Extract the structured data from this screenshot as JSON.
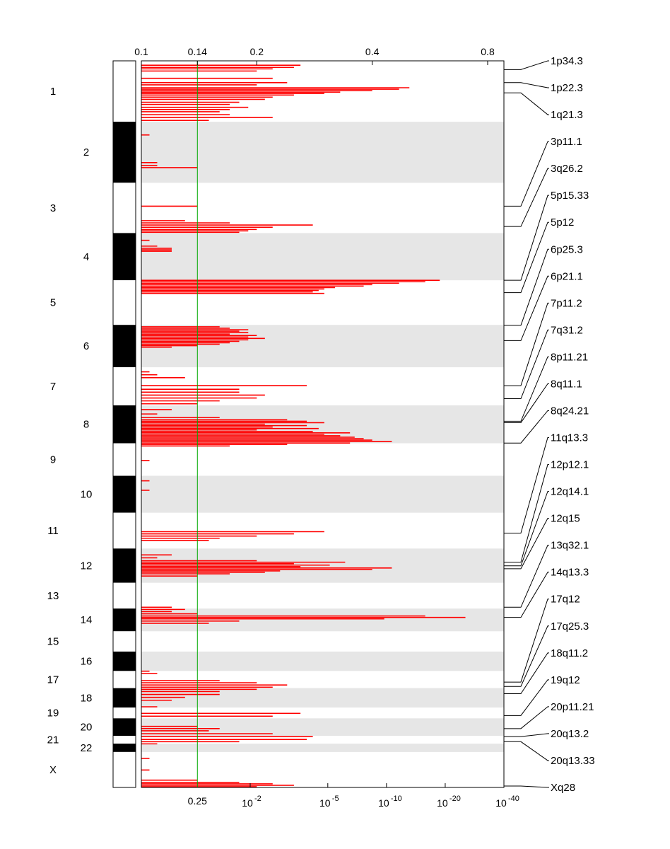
{
  "chart_data": {
    "type": "genome-amplification-plot",
    "top_axis": {
      "ticks": [
        "0.1",
        "0.14",
        "0.2",
        "0.4",
        "0.8"
      ],
      "tick_values": [
        0.1,
        0.14,
        0.2,
        0.4,
        0.8
      ]
    },
    "bottom_axis": {
      "plain_tick": "0.25",
      "pvalue_ticks": [
        {
          "base": "10",
          "exp": "-2"
        },
        {
          "base": "10",
          "exp": "-5"
        },
        {
          "base": "10",
          "exp": "-10"
        },
        {
          "base": "10",
          "exp": "-20"
        },
        {
          "base": "10",
          "exp": "-40"
        }
      ],
      "pvalue_exponents": [
        -2,
        -5,
        -10,
        -20,
        -40
      ]
    },
    "threshold_line": {
      "value": 0.14,
      "q_value": 0.25,
      "color": "#00aa00"
    },
    "series_color": "#ff0000",
    "chromosomes": [
      {
        "name": "1",
        "start": 0.0,
        "end": 0.0838
      },
      {
        "name": "2",
        "start": 0.0838,
        "end": 0.1678
      },
      {
        "name": "3",
        "start": 0.1678,
        "end": 0.237
      },
      {
        "name": "4",
        "start": 0.237,
        "end": 0.302
      },
      {
        "name": "5",
        "start": 0.302,
        "end": 0.3634
      },
      {
        "name": "6",
        "start": 0.3634,
        "end": 0.4217
      },
      {
        "name": "7",
        "start": 0.4217,
        "end": 0.4741
      },
      {
        "name": "8",
        "start": 0.4741,
        "end": 0.5263
      },
      {
        "name": "9",
        "start": 0.5263,
        "end": 0.5711
      },
      {
        "name": "10",
        "start": 0.5711,
        "end": 0.6219
      },
      {
        "name": "11",
        "start": 0.6219,
        "end": 0.6712
      },
      {
        "name": "12",
        "start": 0.6712,
        "end": 0.7183
      },
      {
        "name": "13",
        "start": 0.7183,
        "end": 0.7538
      },
      {
        "name": "14",
        "start": 0.7538,
        "end": 0.7851
      },
      {
        "name": "15",
        "start": 0.7851,
        "end": 0.813
      },
      {
        "name": "16",
        "start": 0.813,
        "end": 0.8397
      },
      {
        "name": "17",
        "start": 0.8397,
        "end": 0.8633
      },
      {
        "name": "18",
        "start": 0.8633,
        "end": 0.89
      },
      {
        "name": "19",
        "start": 0.89,
        "end": 0.9049
      },
      {
        "name": "20",
        "start": 0.9049,
        "end": 0.929
      },
      {
        "name": "21",
        "start": 0.929,
        "end": 0.9397
      },
      {
        "name": "22",
        "start": 0.9397,
        "end": 0.9512
      },
      {
        "name": "X",
        "start": 0.9512,
        "end": 1.0
      }
    ],
    "peaks": [
      {
        "label": "1p34.3",
        "pos": 0.012
      },
      {
        "label": "1p22.3",
        "pos": 0.03
      },
      {
        "label": "1q21.3",
        "pos": 0.044
      },
      {
        "label": "3p11.1",
        "pos": 0.2
      },
      {
        "label": "3q26.2",
        "pos": 0.228
      },
      {
        "label": "5p15.33",
        "pos": 0.302
      },
      {
        "label": "5p12",
        "pos": 0.319
      },
      {
        "label": "6p25.3",
        "pos": 0.364
      },
      {
        "label": "6p21.1",
        "pos": 0.385
      },
      {
        "label": "7p11.2",
        "pos": 0.447
      },
      {
        "label": "7q31.2",
        "pos": 0.465
      },
      {
        "label": "8p11.21",
        "pos": 0.496
      },
      {
        "label": "8q11.1",
        "pos": 0.498
      },
      {
        "label": "8q24.21",
        "pos": 0.526
      },
      {
        "label": "11q13.3",
        "pos": 0.65
      },
      {
        "label": "12p12.1",
        "pos": 0.69
      },
      {
        "label": "12q14.1",
        "pos": 0.695
      },
      {
        "label": "12q15",
        "pos": 0.699
      },
      {
        "label": "13q32.1",
        "pos": 0.752
      },
      {
        "label": "14q13.3",
        "pos": 0.766
      },
      {
        "label": "17q12",
        "pos": 0.855
      },
      {
        "label": "17q25.3",
        "pos": 0.861
      },
      {
        "label": "18q11.2",
        "pos": 0.871
      },
      {
        "label": "19q12",
        "pos": 0.901
      },
      {
        "label": "20p11.21",
        "pos": 0.919
      },
      {
        "label": "20q13.2",
        "pos": 0.93
      },
      {
        "label": "20q13.33",
        "pos": 0.937
      },
      {
        "label": "Xq28",
        "pos": 0.998
      }
    ],
    "segments": [
      {
        "pos": 0.006,
        "val": 0.26
      },
      {
        "pos": 0.009,
        "val": 0.25
      },
      {
        "pos": 0.011,
        "val": 0.22
      },
      {
        "pos": 0.014,
        "val": 0.2
      },
      {
        "pos": 0.024,
        "val": 0.22
      },
      {
        "pos": 0.03,
        "val": 0.24
      },
      {
        "pos": 0.033,
        "val": 0.2
      },
      {
        "pos": 0.037,
        "val": 0.5
      },
      {
        "pos": 0.039,
        "val": 0.47
      },
      {
        "pos": 0.041,
        "val": 0.4
      },
      {
        "pos": 0.043,
        "val": 0.33
      },
      {
        "pos": 0.045,
        "val": 0.3
      },
      {
        "pos": 0.047,
        "val": 0.25
      },
      {
        "pos": 0.05,
        "val": 0.22
      },
      {
        "pos": 0.053,
        "val": 0.21
      },
      {
        "pos": 0.057,
        "val": 0.18
      },
      {
        "pos": 0.06,
        "val": 0.17
      },
      {
        "pos": 0.064,
        "val": 0.19
      },
      {
        "pos": 0.067,
        "val": 0.17
      },
      {
        "pos": 0.07,
        "val": 0.16
      },
      {
        "pos": 0.074,
        "val": 0.17
      },
      {
        "pos": 0.078,
        "val": 0.22
      },
      {
        "pos": 0.082,
        "val": 0.15
      },
      {
        "pos": 0.102,
        "val": 0.105
      },
      {
        "pos": 0.14,
        "val": 0.11
      },
      {
        "pos": 0.144,
        "val": 0.11
      },
      {
        "pos": 0.147,
        "val": 0.14
      },
      {
        "pos": 0.2,
        "val": 0.14
      },
      {
        "pos": 0.22,
        "val": 0.13
      },
      {
        "pos": 0.223,
        "val": 0.17
      },
      {
        "pos": 0.226,
        "val": 0.28
      },
      {
        "pos": 0.229,
        "val": 0.22
      },
      {
        "pos": 0.232,
        "val": 0.2
      },
      {
        "pos": 0.234,
        "val": 0.19
      },
      {
        "pos": 0.236,
        "val": 0.18
      },
      {
        "pos": 0.247,
        "val": 0.105
      },
      {
        "pos": 0.255,
        "val": 0.11
      },
      {
        "pos": 0.258,
        "val": 0.12
      },
      {
        "pos": 0.26,
        "val": 0.12
      },
      {
        "pos": 0.262,
        "val": 0.12
      },
      {
        "pos": 0.302,
        "val": 0.6
      },
      {
        "pos": 0.304,
        "val": 0.55
      },
      {
        "pos": 0.306,
        "val": 0.47
      },
      {
        "pos": 0.308,
        "val": 0.4
      },
      {
        "pos": 0.31,
        "val": 0.38
      },
      {
        "pos": 0.312,
        "val": 0.32
      },
      {
        "pos": 0.314,
        "val": 0.3
      },
      {
        "pos": 0.316,
        "val": 0.29
      },
      {
        "pos": 0.318,
        "val": 0.28
      },
      {
        "pos": 0.32,
        "val": 0.3
      },
      {
        "pos": 0.366,
        "val": 0.16
      },
      {
        "pos": 0.368,
        "val": 0.17
      },
      {
        "pos": 0.37,
        "val": 0.19
      },
      {
        "pos": 0.372,
        "val": 0.18
      },
      {
        "pos": 0.374,
        "val": 0.19
      },
      {
        "pos": 0.376,
        "val": 0.17
      },
      {
        "pos": 0.378,
        "val": 0.2
      },
      {
        "pos": 0.38,
        "val": 0.19
      },
      {
        "pos": 0.382,
        "val": 0.21
      },
      {
        "pos": 0.384,
        "val": 0.19
      },
      {
        "pos": 0.386,
        "val": 0.18
      },
      {
        "pos": 0.388,
        "val": 0.17
      },
      {
        "pos": 0.39,
        "val": 0.16
      },
      {
        "pos": 0.392,
        "val": 0.14
      },
      {
        "pos": 0.394,
        "val": 0.12
      },
      {
        "pos": 0.428,
        "val": 0.105
      },
      {
        "pos": 0.432,
        "val": 0.11
      },
      {
        "pos": 0.436,
        "val": 0.13
      },
      {
        "pos": 0.447,
        "val": 0.27
      },
      {
        "pos": 0.452,
        "val": 0.18
      },
      {
        "pos": 0.456,
        "val": 0.18
      },
      {
        "pos": 0.46,
        "val": 0.21
      },
      {
        "pos": 0.464,
        "val": 0.2
      },
      {
        "pos": 0.468,
        "val": 0.16
      },
      {
        "pos": 0.472,
        "val": 0.14
      },
      {
        "pos": 0.48,
        "val": 0.12
      },
      {
        "pos": 0.486,
        "val": 0.11
      },
      {
        "pos": 0.491,
        "val": 0.16
      },
      {
        "pos": 0.494,
        "val": 0.24
      },
      {
        "pos": 0.496,
        "val": 0.27
      },
      {
        "pos": 0.498,
        "val": 0.3
      },
      {
        "pos": 0.5,
        "val": 0.21
      },
      {
        "pos": 0.502,
        "val": 0.27
      },
      {
        "pos": 0.504,
        "val": 0.22
      },
      {
        "pos": 0.506,
        "val": 0.29
      },
      {
        "pos": 0.508,
        "val": 0.2
      },
      {
        "pos": 0.51,
        "val": 0.28
      },
      {
        "pos": 0.512,
        "val": 0.35
      },
      {
        "pos": 0.514,
        "val": 0.3
      },
      {
        "pos": 0.516,
        "val": 0.33
      },
      {
        "pos": 0.518,
        "val": 0.36
      },
      {
        "pos": 0.52,
        "val": 0.38
      },
      {
        "pos": 0.522,
        "val": 0.4
      },
      {
        "pos": 0.524,
        "val": 0.45
      },
      {
        "pos": 0.526,
        "val": 0.35
      },
      {
        "pos": 0.528,
        "val": 0.24
      },
      {
        "pos": 0.53,
        "val": 0.17
      },
      {
        "pos": 0.55,
        "val": 0.105
      },
      {
        "pos": 0.578,
        "val": 0.105
      },
      {
        "pos": 0.591,
        "val": 0.105
      },
      {
        "pos": 0.648,
        "val": 0.3
      },
      {
        "pos": 0.651,
        "val": 0.25
      },
      {
        "pos": 0.654,
        "val": 0.2
      },
      {
        "pos": 0.657,
        "val": 0.16
      },
      {
        "pos": 0.66,
        "val": 0.15
      },
      {
        "pos": 0.68,
        "val": 0.12
      },
      {
        "pos": 0.684,
        "val": 0.11
      },
      {
        "pos": 0.688,
        "val": 0.2
      },
      {
        "pos": 0.69,
        "val": 0.34
      },
      {
        "pos": 0.692,
        "val": 0.25
      },
      {
        "pos": 0.694,
        "val": 0.31
      },
      {
        "pos": 0.696,
        "val": 0.26
      },
      {
        "pos": 0.698,
        "val": 0.45
      },
      {
        "pos": 0.7,
        "val": 0.4
      },
      {
        "pos": 0.702,
        "val": 0.23
      },
      {
        "pos": 0.704,
        "val": 0.21
      },
      {
        "pos": 0.706,
        "val": 0.17
      },
      {
        "pos": 0.709,
        "val": 0.14
      },
      {
        "pos": 0.752,
        "val": 0.12
      },
      {
        "pos": 0.755,
        "val": 0.13
      },
      {
        "pos": 0.758,
        "val": 0.12
      },
      {
        "pos": 0.761,
        "val": 0.14
      },
      {
        "pos": 0.764,
        "val": 0.55
      },
      {
        "pos": 0.766,
        "val": 0.7
      },
      {
        "pos": 0.768,
        "val": 0.43
      },
      {
        "pos": 0.771,
        "val": 0.18
      },
      {
        "pos": 0.774,
        "val": 0.15
      },
      {
        "pos": 0.84,
        "val": 0.105
      },
      {
        "pos": 0.843,
        "val": 0.11
      },
      {
        "pos": 0.853,
        "val": 0.16
      },
      {
        "pos": 0.856,
        "val": 0.2
      },
      {
        "pos": 0.859,
        "val": 0.24
      },
      {
        "pos": 0.862,
        "val": 0.22
      },
      {
        "pos": 0.865,
        "val": 0.2
      },
      {
        "pos": 0.868,
        "val": 0.16
      },
      {
        "pos": 0.872,
        "val": 0.16
      },
      {
        "pos": 0.876,
        "val": 0.13
      },
      {
        "pos": 0.88,
        "val": 0.12
      },
      {
        "pos": 0.889,
        "val": 0.11
      },
      {
        "pos": 0.898,
        "val": 0.26
      },
      {
        "pos": 0.902,
        "val": 0.22
      },
      {
        "pos": 0.916,
        "val": 0.14
      },
      {
        "pos": 0.919,
        "val": 0.16
      },
      {
        "pos": 0.922,
        "val": 0.15
      },
      {
        "pos": 0.926,
        "val": 0.22
      },
      {
        "pos": 0.93,
        "val": 0.28
      },
      {
        "pos": 0.934,
        "val": 0.27
      },
      {
        "pos": 0.937,
        "val": 0.18
      },
      {
        "pos": 0.94,
        "val": 0.11
      },
      {
        "pos": 0.96,
        "val": 0.105
      },
      {
        "pos": 0.976,
        "val": 0.105
      },
      {
        "pos": 0.99,
        "val": 0.14
      },
      {
        "pos": 0.993,
        "val": 0.18
      },
      {
        "pos": 0.995,
        "val": 0.22
      },
      {
        "pos": 0.997,
        "val": 0.25
      },
      {
        "pos": 0.999,
        "val": 0.2
      }
    ]
  }
}
